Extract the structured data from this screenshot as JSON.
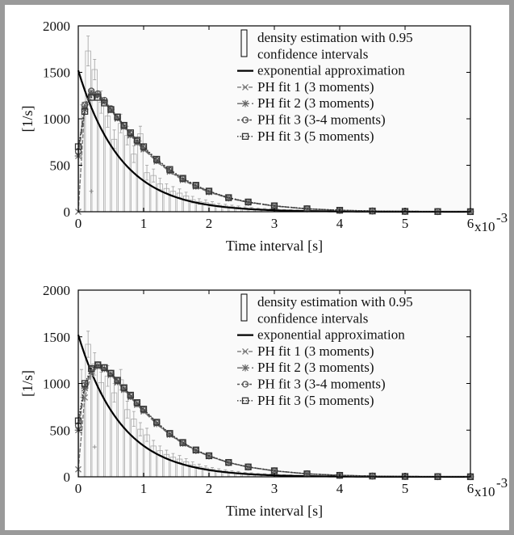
{
  "chart_data": [
    {
      "type": "line",
      "xlabel": "Time interval [s]",
      "ylabel": "[1/s]",
      "xlim": [
        0,
        6
      ],
      "ylim": [
        0,
        2000
      ],
      "x_ticks": [
        "0",
        "1",
        "2",
        "3",
        "4",
        "5",
        "6"
      ],
      "y_ticks": [
        "0",
        "500",
        "1000",
        "1500",
        "2000"
      ],
      "x_multiplier": {
        "base": "x10",
        "exponent": "-3"
      },
      "legend_position": "top-right",
      "histogram": {
        "name": "density estimation with 0.95 confidence intervals",
        "name_lines": [
          "density estimation with 0.95",
          "confidence intervals"
        ],
        "bin_width": 0.1,
        "x": [
          0.05,
          0.15,
          0.25,
          0.35,
          0.45,
          0.55,
          0.65,
          0.75,
          0.85,
          0.95,
          1.05,
          1.15,
          1.25,
          1.35,
          1.45,
          1.55,
          1.65,
          1.75,
          1.85,
          1.95,
          2.05,
          2.15,
          2.25,
          2.35,
          2.45,
          2.55,
          2.65,
          2.75,
          2.85,
          2.95,
          3.05,
          3.15,
          3.25,
          3.35,
          3.45,
          3.55,
          3.65,
          3.75,
          3.85,
          3.95,
          4.05,
          4.15,
          4.25,
          4.35,
          4.45,
          4.55,
          4.65,
          4.75,
          4.85,
          4.95,
          5.05,
          5.15,
          5.25,
          5.35,
          5.45,
          5.55,
          5.65,
          5.75,
          5.85,
          5.95
        ],
        "values": [
          1000,
          1730,
          1530,
          1180,
          1030,
          780,
          950,
          820,
          620,
          840,
          420,
          390,
          300,
          250,
          220,
          200,
          170,
          130,
          110,
          100,
          85,
          70,
          62,
          55,
          48,
          40,
          35,
          30,
          27,
          24,
          20,
          18,
          16,
          14,
          12,
          11,
          10,
          9,
          8,
          7,
          6,
          6,
          5,
          5,
          4,
          4,
          4,
          3,
          3,
          3,
          3,
          2,
          2,
          2,
          2,
          2,
          2,
          2,
          2,
          2
        ],
        "upper": [
          1150,
          1890,
          1640,
          1300,
          1150,
          880,
          1050,
          920,
          710,
          920,
          500,
          460,
          360,
          300,
          270,
          245,
          210,
          165,
          140,
          128,
          108,
          90,
          80,
          70,
          62,
          52,
          46,
          40,
          36,
          32,
          27,
          24,
          21,
          19,
          16,
          15,
          13,
          12,
          11,
          10,
          9,
          8,
          7,
          7,
          6,
          6,
          6,
          5,
          5,
          5,
          5,
          4,
          4,
          4,
          4,
          4,
          4,
          4,
          4,
          4
        ],
        "lower": [
          850,
          1570,
          1420,
          1060,
          910,
          680,
          850,
          720,
          530,
          760,
          340,
          320,
          240,
          200,
          170,
          155,
          130,
          95,
          80,
          72,
          62,
          50,
          44,
          40,
          34,
          28,
          24,
          20,
          18,
          16,
          13,
          12,
          11,
          9,
          8,
          7,
          7,
          6,
          5,
          4,
          3,
          3,
          3,
          3,
          2,
          2,
          2,
          1,
          1,
          1,
          1,
          1,
          1,
          1,
          1,
          1,
          1,
          1,
          1,
          1
        ],
        "outlier": {
          "x": 0.2,
          "y": 220
        }
      },
      "series": [
        {
          "name": "exponential approximation",
          "rate": 1.52,
          "scale": 1520,
          "color": "#000000",
          "marker": "none"
        },
        {
          "name": "PH fit 1 (3 moments)",
          "color": "#7a7a7a",
          "marker": "x",
          "x": [
            0,
            0.1,
            0.2,
            0.3,
            0.4,
            0.5,
            0.6,
            0.7,
            0.8,
            0.9,
            1.0,
            1.2,
            1.4,
            1.6,
            1.8,
            2.0,
            2.3,
            2.6,
            3.0,
            3.5,
            4.0,
            4.5,
            5.0,
            5.5,
            6.0
          ],
          "y": [
            0,
            1150,
            1290,
            1250,
            1180,
            1090,
            1000,
            910,
            820,
            740,
            670,
            540,
            430,
            340,
            270,
            210,
            145,
            100,
            60,
            30,
            15,
            8,
            4,
            2,
            1
          ]
        },
        {
          "name": "PH fit 2 (3 moments)",
          "color": "#666666",
          "marker": "star",
          "x": [
            0,
            0.1,
            0.2,
            0.3,
            0.4,
            0.5,
            0.6,
            0.7,
            0.8,
            0.9,
            1.0,
            1.2,
            1.4,
            1.6,
            1.8,
            2.0,
            2.3,
            2.6,
            3.0,
            3.5,
            4.0,
            4.5,
            5.0,
            5.5,
            6.0
          ],
          "y": [
            600,
            1100,
            1270,
            1260,
            1190,
            1100,
            1010,
            920,
            830,
            750,
            680,
            550,
            440,
            350,
            275,
            215,
            148,
            102,
            62,
            31,
            15,
            8,
            4,
            2,
            1
          ]
        },
        {
          "name": "PH fit 3 (3-4 moments)",
          "color": "#555555",
          "marker": "circle",
          "x": [
            0,
            0.1,
            0.2,
            0.3,
            0.4,
            0.5,
            0.6,
            0.7,
            0.8,
            0.9,
            1.0,
            1.2,
            1.4,
            1.6,
            1.8,
            2.0,
            2.3,
            2.6,
            3.0,
            3.5,
            4.0,
            4.5,
            5.0,
            5.5,
            6.0
          ],
          "y": [
            650,
            1150,
            1300,
            1270,
            1200,
            1110,
            1020,
            930,
            840,
            760,
            690,
            555,
            445,
            355,
            280,
            220,
            150,
            104,
            63,
            32,
            16,
            8,
            4,
            2,
            1
          ]
        },
        {
          "name": "PH fit 3 (5 moments)",
          "color": "#333333",
          "marker": "square",
          "x": [
            0,
            0.1,
            0.2,
            0.3,
            0.4,
            0.5,
            0.6,
            0.7,
            0.8,
            0.9,
            1.0,
            1.2,
            1.4,
            1.6,
            1.8,
            2.0,
            2.3,
            2.6,
            3.0,
            3.5,
            4.0,
            4.5,
            5.0,
            5.5,
            6.0
          ],
          "y": [
            700,
            1080,
            1230,
            1230,
            1170,
            1100,
            1020,
            930,
            850,
            770,
            700,
            565,
            455,
            360,
            285,
            222,
            152,
            105,
            64,
            32,
            16,
            8,
            4,
            2,
            1
          ]
        }
      ]
    },
    {
      "type": "line",
      "xlabel": "Time interval [s]",
      "ylabel": "[1/s]",
      "xlim": [
        0,
        6
      ],
      "ylim": [
        0,
        2000
      ],
      "x_ticks": [
        "0",
        "1",
        "2",
        "3",
        "4",
        "5",
        "6"
      ],
      "y_ticks": [
        "0",
        "500",
        "1000",
        "1500",
        "2000"
      ],
      "x_multiplier": {
        "base": "x10",
        "exponent": "-3"
      },
      "legend_position": "top-right",
      "histogram": {
        "name": "density estimation with 0.95 confidence intervals",
        "name_lines": [
          "density estimation with 0.95",
          "confidence intervals"
        ],
        "bin_width": 0.1,
        "x": [
          0.05,
          0.15,
          0.25,
          0.35,
          0.45,
          0.55,
          0.65,
          0.75,
          0.85,
          0.95,
          1.05,
          1.15,
          1.25,
          1.35,
          1.45,
          1.55,
          1.65,
          1.75,
          1.85,
          1.95,
          2.05,
          2.15,
          2.25,
          2.35,
          2.45,
          2.55,
          2.65,
          2.75,
          2.85,
          2.95,
          3.05,
          3.15,
          3.25,
          3.35,
          3.45,
          3.55,
          3.65,
          3.75,
          3.85,
          3.95,
          4.05,
          4.15,
          4.25,
          4.35,
          4.45,
          4.55,
          4.65,
          4.75,
          4.85,
          4.95,
          5.05,
          5.15,
          5.25,
          5.35,
          5.45,
          5.55,
          5.65,
          5.75,
          5.85,
          5.95
        ],
        "values": [
          1000,
          1420,
          1210,
          1010,
          1080,
          900,
          1040,
          720,
          620,
          510,
          450,
          330,
          280,
          240,
          210,
          190,
          160,
          130,
          110,
          95,
          80,
          68,
          60,
          52,
          45,
          38,
          33,
          28,
          25,
          22,
          19,
          17,
          15,
          13,
          11,
          10,
          9,
          8,
          7,
          6,
          6,
          5,
          5,
          4,
          4,
          4,
          3,
          3,
          3,
          3,
          2,
          2,
          2,
          2,
          2,
          2,
          2,
          2,
          2,
          2
        ],
        "upper": [
          1150,
          1560,
          1330,
          1120,
          1190,
          1000,
          1150,
          810,
          700,
          580,
          520,
          390,
          330,
          285,
          250,
          228,
          195,
          160,
          136,
          118,
          100,
          86,
          76,
          66,
          58,
          49,
          43,
          37,
          33,
          29,
          25,
          22,
          20,
          17,
          15,
          14,
          12,
          11,
          10,
          9,
          8,
          7,
          7,
          6,
          6,
          6,
          5,
          5,
          5,
          5,
          4,
          4,
          4,
          4,
          4,
          4,
          4,
          4,
          4,
          4
        ],
        "lower": [
          850,
          1280,
          1090,
          900,
          970,
          800,
          930,
          630,
          540,
          440,
          380,
          270,
          230,
          195,
          170,
          152,
          125,
          100,
          84,
          72,
          60,
          50,
          44,
          38,
          32,
          27,
          23,
          19,
          17,
          15,
          13,
          12,
          10,
          9,
          7,
          6,
          6,
          5,
          4,
          3,
          4,
          3,
          3,
          2,
          2,
          2,
          1,
          1,
          1,
          1,
          1,
          1,
          1,
          1,
          1,
          1,
          1,
          1,
          1,
          1
        ],
        "outlier": {
          "x": 0.25,
          "y": 320
        }
      },
      "series": [
        {
          "name": "exponential approximation",
          "rate": 1.52,
          "scale": 1520,
          "color": "#000000",
          "marker": "none"
        },
        {
          "name": "PH fit 1 (3 moments)",
          "color": "#7a7a7a",
          "marker": "x",
          "x": [
            0,
            0.1,
            0.2,
            0.3,
            0.4,
            0.5,
            0.6,
            0.7,
            0.8,
            0.9,
            1.0,
            1.2,
            1.4,
            1.6,
            1.8,
            2.0,
            2.3,
            2.6,
            3.0,
            3.5,
            4.0,
            4.5,
            5.0,
            5.5,
            6.0
          ],
          "y": [
            80,
            850,
            1100,
            1180,
            1150,
            1090,
            1010,
            930,
            850,
            770,
            700,
            565,
            450,
            355,
            280,
            220,
            150,
            104,
            63,
            32,
            16,
            8,
            4,
            2,
            1
          ]
        },
        {
          "name": "PH fit 2 (3 moments)",
          "color": "#666666",
          "marker": "star",
          "x": [
            0,
            0.1,
            0.2,
            0.3,
            0.4,
            0.5,
            0.6,
            0.7,
            0.8,
            0.9,
            1.0,
            1.2,
            1.4,
            1.6,
            1.8,
            2.0,
            2.3,
            2.6,
            3.0,
            3.5,
            4.0,
            4.5,
            5.0,
            5.5,
            6.0
          ],
          "y": [
            500,
            950,
            1130,
            1190,
            1160,
            1100,
            1020,
            940,
            860,
            780,
            710,
            570,
            455,
            360,
            282,
            222,
            152,
            105,
            64,
            32,
            16,
            8,
            4,
            2,
            1
          ]
        },
        {
          "name": "PH fit 3 (3-4 moments)",
          "color": "#555555",
          "marker": "circle",
          "x": [
            0,
            0.1,
            0.2,
            0.3,
            0.4,
            0.5,
            0.6,
            0.7,
            0.8,
            0.9,
            1.0,
            1.2,
            1.4,
            1.6,
            1.8,
            2.0,
            2.3,
            2.6,
            3.0,
            3.5,
            4.0,
            4.5,
            5.0,
            5.5,
            6.0
          ],
          "y": [
            550,
            980,
            1150,
            1200,
            1170,
            1110,
            1030,
            950,
            870,
            790,
            720,
            580,
            460,
            365,
            285,
            225,
            153,
            106,
            64,
            32,
            16,
            8,
            4,
            2,
            1
          ]
        },
        {
          "name": "PH fit 3 (5 moments)",
          "color": "#333333",
          "marker": "square",
          "x": [
            0,
            0.1,
            0.2,
            0.3,
            0.4,
            0.5,
            0.6,
            0.7,
            0.8,
            0.9,
            1.0,
            1.2,
            1.4,
            1.6,
            1.8,
            2.0,
            2.3,
            2.6,
            3.0,
            3.5,
            4.0,
            4.5,
            5.0,
            5.5,
            6.0
          ],
          "y": [
            600,
            1000,
            1160,
            1200,
            1170,
            1110,
            1035,
            955,
            875,
            795,
            725,
            585,
            465,
            368,
            288,
            226,
            154,
            106,
            65,
            32,
            16,
            8,
            4,
            2,
            1
          ]
        }
      ]
    }
  ]
}
